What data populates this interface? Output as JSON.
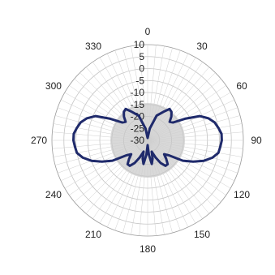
{
  "chart_data": {
    "type": "polar-line",
    "title": "",
    "angle_labels": [
      "0",
      "30",
      "60",
      "90",
      "120",
      "150",
      "180",
      "210",
      "240",
      "270",
      "300",
      "330"
    ],
    "radial_labels": [
      "10",
      "5",
      "0",
      "-5",
      "-10",
      "-15",
      "-20",
      "-25",
      "-30"
    ],
    "radial_range": [
      -30,
      10
    ],
    "radial_step": 5,
    "angle_step_minor": 5,
    "grid": true,
    "series": [
      {
        "color": "#1f2a6b",
        "points": [
          {
            "theta": 0,
            "r": -29
          },
          {
            "theta": 10,
            "r": -25
          },
          {
            "theta": 20,
            "r": -19
          },
          {
            "theta": 30,
            "r": -16
          },
          {
            "theta": 35,
            "r": -14
          },
          {
            "theta": 40,
            "r": -14.5
          },
          {
            "theta": 45,
            "r": -16
          },
          {
            "theta": 50,
            "r": -18
          },
          {
            "theta": 55,
            "r": -17
          },
          {
            "theta": 60,
            "r": -12
          },
          {
            "theta": 65,
            "r": -6
          },
          {
            "theta": 70,
            "r": -3
          },
          {
            "theta": 75,
            "r": -1
          },
          {
            "theta": 80,
            "r": 0
          },
          {
            "theta": 85,
            "r": 1
          },
          {
            "theta": 90,
            "r": 1
          },
          {
            "theta": 95,
            "r": 0.5
          },
          {
            "theta": 100,
            "r": 0
          },
          {
            "theta": 105,
            "r": -2
          },
          {
            "theta": 110,
            "r": -5
          },
          {
            "theta": 115,
            "r": -9
          },
          {
            "theta": 120,
            "r": -13
          },
          {
            "theta": 125,
            "r": -19
          },
          {
            "theta": 130,
            "r": -21
          },
          {
            "theta": 135,
            "r": -19
          },
          {
            "theta": 140,
            "r": -17
          },
          {
            "theta": 145,
            "r": -17
          },
          {
            "theta": 150,
            "r": -19
          },
          {
            "theta": 155,
            "r": -22
          },
          {
            "theta": 160,
            "r": -25
          },
          {
            "theta": 165,
            "r": -22
          },
          {
            "theta": 170,
            "r": -20
          },
          {
            "theta": 175,
            "r": -24
          },
          {
            "theta": 180,
            "r": -28
          },
          {
            "theta": 185,
            "r": -24
          },
          {
            "theta": 190,
            "r": -20
          },
          {
            "theta": 195,
            "r": -22
          },
          {
            "theta": 200,
            "r": -25
          },
          {
            "theta": 205,
            "r": -22
          },
          {
            "theta": 210,
            "r": -19
          },
          {
            "theta": 215,
            "r": -17
          },
          {
            "theta": 220,
            "r": -17
          },
          {
            "theta": 225,
            "r": -19
          },
          {
            "theta": 230,
            "r": -21
          },
          {
            "theta": 235,
            "r": -19
          },
          {
            "theta": 240,
            "r": -13
          },
          {
            "theta": 245,
            "r": -9
          },
          {
            "theta": 250,
            "r": -5
          },
          {
            "theta": 255,
            "r": -2
          },
          {
            "theta": 260,
            "r": 0
          },
          {
            "theta": 265,
            "r": 0.5
          },
          {
            "theta": 270,
            "r": 1
          },
          {
            "theta": 275,
            "r": 1
          },
          {
            "theta": 280,
            "r": 0
          },
          {
            "theta": 285,
            "r": -1
          },
          {
            "theta": 290,
            "r": -3
          },
          {
            "theta": 295,
            "r": -6
          },
          {
            "theta": 300,
            "r": -12
          },
          {
            "theta": 305,
            "r": -17
          },
          {
            "theta": 310,
            "r": -18
          },
          {
            "theta": 315,
            "r": -16
          },
          {
            "theta": 320,
            "r": -14.5
          },
          {
            "theta": 325,
            "r": -14
          },
          {
            "theta": 330,
            "r": -16
          },
          {
            "theta": 340,
            "r": -19
          },
          {
            "theta": 350,
            "r": -25
          },
          {
            "theta": 360,
            "r": -29
          }
        ]
      }
    ]
  }
}
